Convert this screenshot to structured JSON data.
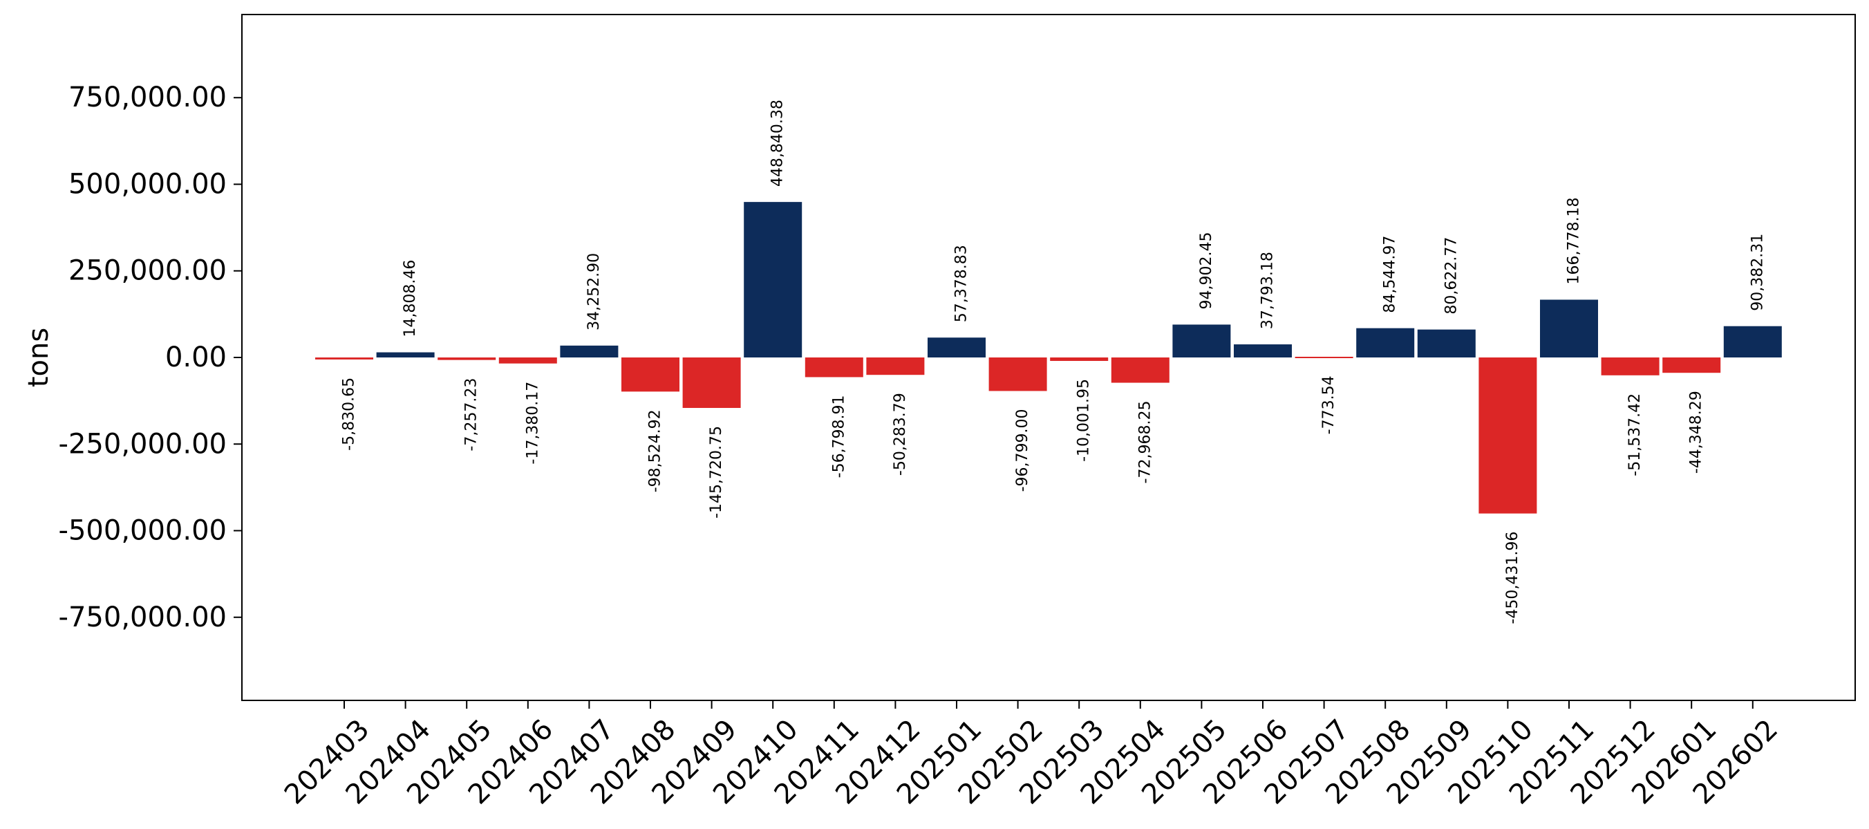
{
  "chart_data": {
    "type": "bar",
    "title": "",
    "xlabel": "",
    "ylabel": "tons",
    "ylim": [
      -990000,
      990000
    ],
    "yticks": [
      -750000,
      -500000,
      -250000,
      0,
      250000,
      500000,
      750000
    ],
    "ytick_labels": [
      "-750,000.00",
      "-500,000.00",
      "-250,000.00",
      "0.00",
      "250,000.00",
      "500,000.00",
      "750,000.00"
    ],
    "categories": [
      "202403",
      "202404",
      "202405",
      "202406",
      "202407",
      "202408",
      "202409",
      "202410",
      "202411",
      "202412",
      "202501",
      "202502",
      "202503",
      "202504",
      "202505",
      "202506",
      "202507",
      "202508",
      "202509",
      "202510",
      "202511",
      "202512",
      "202601",
      "202602"
    ],
    "values": [
      -5830.65,
      14808.46,
      -7257.23,
      -17380.17,
      34252.9,
      -98524.92,
      -145720.75,
      448840.38,
      -56798.91,
      -50283.79,
      57378.83,
      -96799.0,
      -10001.95,
      -72968.25,
      94902.45,
      37793.18,
      -773.54,
      84544.97,
      80622.77,
      -450431.96,
      166778.18,
      -51537.42,
      -44348.29,
      90382.31
    ],
    "value_labels": [
      "-5,830.65",
      "14,808.46",
      "-7,257.23",
      "-17,380.17",
      "34,252.90",
      "-98,524.92",
      "-145,720.75",
      "448,840.38",
      "-56,798.91",
      "-50,283.79",
      "57,378.83",
      "-96,799.00",
      "-10,001.95",
      "-72,968.25",
      "94,902.45",
      "37,793.18",
      "-773.54",
      "84,544.97",
      "80,622.77",
      "-450,431.96",
      "166,778.18",
      "-51,537.42",
      "-44,348.29",
      "90,382.31"
    ],
    "colors": {
      "positive": "#0d2c5a",
      "negative": "#dc2626"
    },
    "grid": false,
    "legend": "none"
  }
}
